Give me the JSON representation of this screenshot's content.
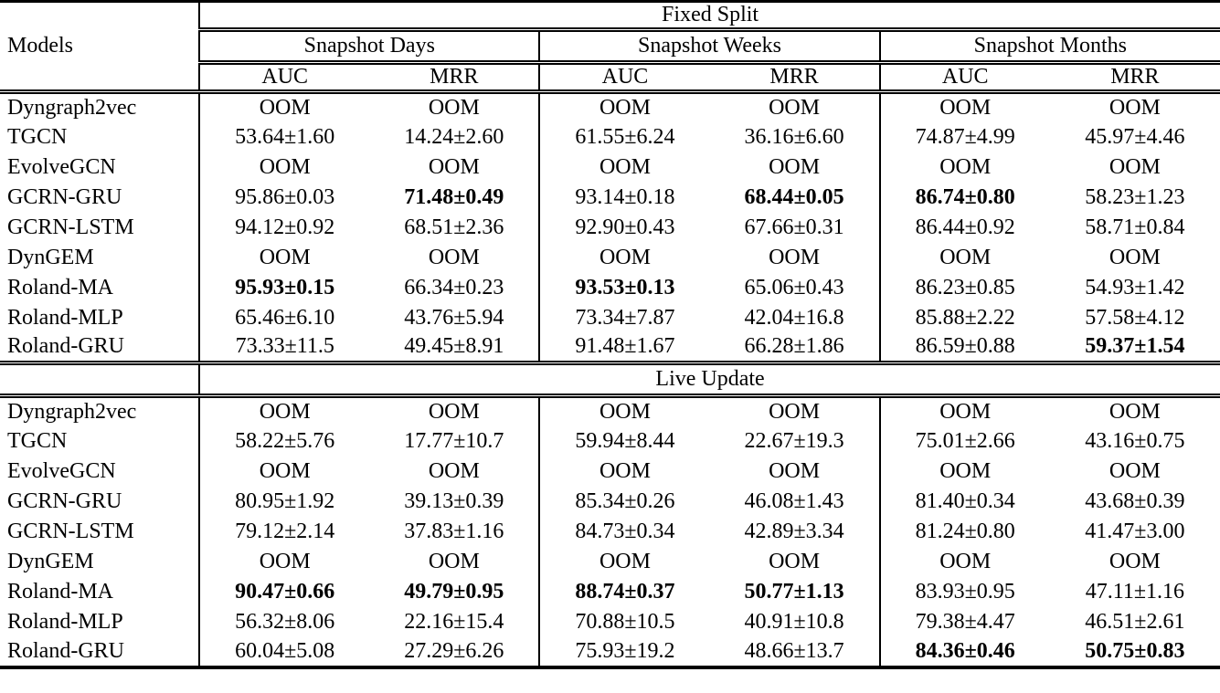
{
  "page": {
    "background_color": "#ffffff",
    "text_color": "#000000"
  },
  "table": {
    "models_column_header": "Models",
    "group_headers": [
      "Snapshot Days",
      "Snapshot Weeks",
      "Snapshot Months"
    ],
    "metric_headers": [
      "AUC",
      "MRR",
      "AUC",
      "MRR",
      "AUC",
      "MRR"
    ],
    "oom_label": "OOM",
    "sections": [
      {
        "title": "Fixed Split",
        "rows": [
          {
            "model": "Dyngraph2vec",
            "values": [
              "OOM",
              "OOM",
              "OOM",
              "OOM",
              "OOM",
              "OOM"
            ],
            "bold": []
          },
          {
            "model": "TGCN",
            "values": [
              "53.64±1.60",
              "14.24±2.60",
              "61.55±6.24",
              "36.16±6.60",
              "74.87±4.99",
              "45.97±4.46"
            ],
            "bold": []
          },
          {
            "model": "EvolveGCN",
            "values": [
              "OOM",
              "OOM",
              "OOM",
              "OOM",
              "OOM",
              "OOM"
            ],
            "bold": []
          },
          {
            "model": "GCRN-GRU",
            "values": [
              "95.86±0.03",
              "71.48±0.49",
              "93.14±0.18",
              "68.44±0.05",
              "86.74±0.80",
              "58.23±1.23"
            ],
            "bold": [
              1,
              3,
              4
            ]
          },
          {
            "model": "GCRN-LSTM",
            "values": [
              "94.12±0.92",
              "68.51±2.36",
              "92.90±0.43",
              "67.66±0.31",
              "86.44±0.92",
              "58.71±0.84"
            ],
            "bold": []
          },
          {
            "model": "DynGEM",
            "values": [
              "OOM",
              "OOM",
              "OOM",
              "OOM",
              "OOM",
              "OOM"
            ],
            "bold": []
          },
          {
            "model": "Roland-MA",
            "values": [
              "95.93±0.15",
              "66.34±0.23",
              "93.53±0.13",
              "65.06±0.43",
              "86.23±0.85",
              "54.93±1.42"
            ],
            "bold": [
              0,
              2
            ]
          },
          {
            "model": "Roland-MLP",
            "values": [
              "65.46±6.10",
              "43.76±5.94",
              "73.34±7.87",
              "42.04±16.8",
              "85.88±2.22",
              "57.58±4.12"
            ],
            "bold": []
          },
          {
            "model": "Roland-GRU",
            "values": [
              "73.33±11.5",
              "49.45±8.91",
              "91.48±1.67",
              "66.28±1.86",
              "86.59±0.88",
              "59.37±1.54"
            ],
            "bold": [
              5
            ]
          }
        ]
      },
      {
        "title": "Live Update",
        "rows": [
          {
            "model": "Dyngraph2vec",
            "values": [
              "OOM",
              "OOM",
              "OOM",
              "OOM",
              "OOM",
              "OOM"
            ],
            "bold": []
          },
          {
            "model": "TGCN",
            "values": [
              "58.22±5.76",
              "17.77±10.7",
              "59.94±8.44",
              "22.67±19.3",
              "75.01±2.66",
              "43.16±0.75"
            ],
            "bold": []
          },
          {
            "model": "EvolveGCN",
            "values": [
              "OOM",
              "OOM",
              "OOM",
              "OOM",
              "OOM",
              "OOM"
            ],
            "bold": []
          },
          {
            "model": "GCRN-GRU",
            "values": [
              "80.95±1.92",
              "39.13±0.39",
              "85.34±0.26",
              "46.08±1.43",
              "81.40±0.34",
              "43.68±0.39"
            ],
            "bold": []
          },
          {
            "model": "GCRN-LSTM",
            "values": [
              "79.12±2.14",
              "37.83±1.16",
              "84.73±0.34",
              "42.89±3.34",
              "81.24±0.80",
              "41.47±3.00"
            ],
            "bold": []
          },
          {
            "model": "DynGEM",
            "values": [
              "OOM",
              "OOM",
              "OOM",
              "OOM",
              "OOM",
              "OOM"
            ],
            "bold": []
          },
          {
            "model": "Roland-MA",
            "values": [
              "90.47±0.66",
              "49.79±0.95",
              "88.74±0.37",
              "50.77±1.13",
              "83.93±0.95",
              "47.11±1.16"
            ],
            "bold": [
              0,
              1,
              2,
              3
            ]
          },
          {
            "model": "Roland-MLP",
            "values": [
              "56.32±8.06",
              "22.16±15.4",
              "70.88±10.5",
              "40.91±10.8",
              "79.38±4.47",
              "46.51±2.61"
            ],
            "bold": []
          },
          {
            "model": "Roland-GRU",
            "values": [
              "60.04±5.08",
              "27.29±6.26",
              "75.93±19.2",
              "48.66±13.7",
              "84.36±0.46",
              "50.75±0.83"
            ],
            "bold": [
              4,
              5
            ]
          }
        ]
      }
    ]
  }
}
